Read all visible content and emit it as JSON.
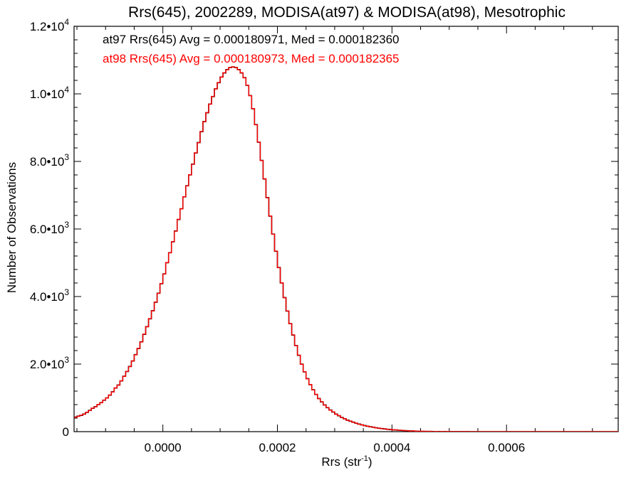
{
  "chart_data": {
    "type": "histogram",
    "title": "Rrs(645), 2002289, MODISA(at97) & MODISA(at98), Mesotrophic",
    "xlabel": "Rrs (str",
    "xlabel_exponent": "-1",
    "xlabel_close": ")",
    "ylabel": "Number of Observations",
    "xlim": [
      -0.000155,
      0.000795
    ],
    "ylim": [
      0,
      12000
    ],
    "grid": false,
    "x_ticks": [
      {
        "value": 0.0,
        "label": "0.0000"
      },
      {
        "value": 0.0002,
        "label": "0.0002"
      },
      {
        "value": 0.0004,
        "label": "0.0004"
      },
      {
        "value": 0.0006,
        "label": "0.0006"
      }
    ],
    "y_ticks": [
      {
        "value": 0,
        "mantissa": "0",
        "exponent": ""
      },
      {
        "value": 2000,
        "mantissa": "2.0•10",
        "exponent": "3"
      },
      {
        "value": 4000,
        "mantissa": "4.0•10",
        "exponent": "3"
      },
      {
        "value": 6000,
        "mantissa": "6.0•10",
        "exponent": "3"
      },
      {
        "value": 8000,
        "mantissa": "8.0•10",
        "exponent": "3"
      },
      {
        "value": 10000,
        "mantissa": "1.0•10",
        "exponent": "4"
      },
      {
        "value": 12000,
        "mantissa": "1.2•10",
        "exponent": "4"
      }
    ],
    "legend": [
      {
        "text": "at97 Rrs(645) Avg = 0.000180971, Med = 0.000182360",
        "color": "#000000"
      },
      {
        "text": "at98 Rrs(645) Avg = 0.000180973, Med = 0.000182365",
        "color": "#ff0000"
      }
    ],
    "legend_position": "top-left",
    "series": [
      {
        "color": "#000000",
        "bin_start": -0.000155,
        "bin_width": 5e-06,
        "counts": [
          430,
          460,
          480,
          520,
          570,
          630,
          690,
          740,
          800,
          860,
          930,
          1000,
          1080,
          1180,
          1290,
          1380,
          1500,
          1640,
          1780,
          1930,
          2090,
          2280,
          2460,
          2660,
          2880,
          3110,
          3340,
          3580,
          3830,
          4100,
          4380,
          4670,
          5000,
          5300,
          5620,
          5940,
          6280,
          6600,
          6950,
          7280,
          7600,
          7920,
          8250,
          8560,
          8880,
          9180,
          9440,
          9700,
          9920,
          10150,
          10330,
          10500,
          10620,
          10720,
          10780,
          10800,
          10780,
          10720,
          10620,
          10480,
          10250,
          9950,
          9560,
          9090,
          8570,
          8030,
          7480,
          6930,
          6380,
          5850,
          5340,
          4860,
          4400,
          3970,
          3570,
          3200,
          2860,
          2550,
          2260,
          2000,
          1770,
          1570,
          1390,
          1240,
          1100,
          980,
          880,
          790,
          710,
          640,
          580,
          520,
          470,
          420,
          380,
          340,
          310,
          280,
          250,
          225,
          200,
          180,
          160,
          145,
          130,
          115,
          100,
          90,
          80,
          70,
          62,
          55,
          48,
          42,
          36,
          31,
          26,
          22,
          18,
          15,
          12,
          10,
          8,
          7,
          6,
          5,
          4,
          4,
          3,
          3,
          2,
          2,
          2,
          1,
          1,
          1,
          1,
          1,
          0,
          0,
          0,
          0,
          0,
          0,
          0,
          0,
          0,
          0,
          0,
          0,
          0,
          0,
          0,
          0,
          0,
          0,
          0,
          0,
          0,
          0,
          0,
          0,
          0,
          0,
          0,
          0,
          0,
          0,
          0,
          0,
          0,
          0,
          0,
          0,
          0,
          0,
          0,
          0,
          0,
          0,
          0,
          0,
          0,
          0,
          0,
          0,
          0,
          0,
          0,
          0,
          0,
          0,
          0,
          0,
          0,
          0,
          0
        ]
      },
      {
        "color": "#ff0000",
        "bin_start": -0.000155,
        "bin_width": 5e-06,
        "counts": [
          420,
          455,
          485,
          515,
          575,
          625,
          695,
          735,
          805,
          855,
          935,
          995,
          1085,
          1175,
          1295,
          1375,
          1505,
          1635,
          1785,
          1925,
          2095,
          2275,
          2465,
          2655,
          2885,
          3105,
          3345,
          3575,
          3835,
          4095,
          4385,
          4665,
          5005,
          5295,
          5625,
          5935,
          6285,
          6595,
          6955,
          7275,
          7605,
          7915,
          8255,
          8555,
          8885,
          9175,
          9445,
          9695,
          9925,
          10145,
          10335,
          10495,
          10625,
          10715,
          10785,
          10795,
          10785,
          10715,
          10625,
          10475,
          10255,
          9945,
          9565,
          9085,
          8575,
          8025,
          7485,
          6925,
          6385,
          5845,
          5345,
          4855,
          4405,
          3965,
          3575,
          3195,
          2865,
          2545,
          2265,
          1995,
          1775,
          1565,
          1395,
          1235,
          1105,
          975,
          885,
          785,
          715,
          635,
          585,
          515,
          475,
          415,
          385,
          335,
          315,
          275,
          255,
          220,
          205,
          175,
          165,
          140,
          135,
          110,
          105,
          85,
          85,
          65,
          67,
          50,
          53,
          38,
          41,
          27,
          31,
          18,
          23,
          11,
          17,
          6,
          12,
          3,
          9,
          1,
          7,
          0,
          6,
          0,
          5,
          0,
          4,
          0,
          3,
          0,
          3,
          0,
          2,
          0,
          2,
          0,
          1,
          0,
          1,
          0,
          1,
          0,
          1,
          0,
          1,
          0,
          0,
          0,
          0,
          0,
          0,
          0,
          0,
          0,
          0,
          0,
          0,
          0,
          0,
          0,
          0,
          0,
          0,
          0,
          0,
          0,
          0,
          0,
          0,
          0,
          0,
          0,
          0,
          0,
          0,
          0,
          0,
          0,
          0,
          0,
          0,
          0,
          0,
          0,
          0,
          0,
          0,
          0,
          0,
          0,
          0,
          0,
          0,
          0,
          0,
          0
        ]
      }
    ]
  }
}
